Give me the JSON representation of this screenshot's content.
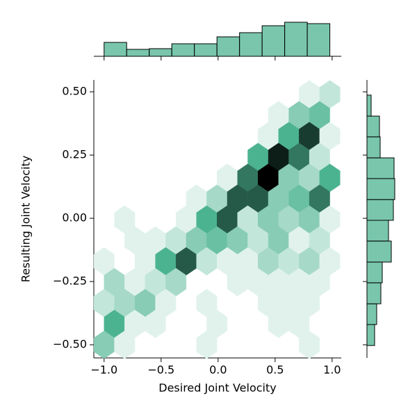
{
  "chart_data": {
    "type": "hexbin",
    "xlabel": "Desired Joint Velocity",
    "ylabel": "Resulting Joint Velocity",
    "color": "#4CB391",
    "xlim": [
      -1.09,
      1.08
    ],
    "ylim": [
      -0.552,
      0.547
    ],
    "xticks": [
      {
        "value": -1,
        "label": "−1.0"
      },
      {
        "value": -0.5,
        "label": "−0.5"
      },
      {
        "value": 0,
        "label": "0.0"
      },
      0.5,
      {
        "value": 1,
        "label": "1.0"
      }
    ],
    "yticks": [
      {
        "value": 0.5,
        "label": "0.50"
      },
      {
        "value": 0.25,
        "label": "0.25"
      },
      {
        "value": 0,
        "label": "0.00"
      },
      {
        "value": -0.25,
        "label": "−0.25"
      },
      {
        "value": -0.5,
        "label": "−0.50"
      }
    ],
    "x": [
      0.8,
      0.98,
      0.53,
      0.71,
      0.89,
      0.44,
      0.62,
      0.8,
      0.98,
      0.35,
      0.53,
      0.71,
      0.89,
      0.08,
      0.26,
      0.44,
      0.62,
      0.8,
      0.98,
      -0.19,
      -0.01,
      0.17,
      0.35,
      0.53,
      0.71,
      0.89,
      -0.82,
      -0.28,
      -0.1,
      0.08,
      0.26,
      0.44,
      0.62,
      0.8,
      0.98,
      -0.73,
      -0.55,
      -0.37,
      -0.19,
      -0.01,
      0.17,
      0.35,
      0.53,
      0.71,
      0.89,
      -1.0,
      -0.64,
      -0.46,
      -0.28,
      -0.1,
      0.08,
      0.26,
      0.44,
      0.62,
      0.8,
      0.98,
      -0.91,
      -0.73,
      -0.55,
      -0.37,
      0.17,
      0.35,
      0.53,
      0.71,
      0.89,
      -1.0,
      -0.82,
      -0.64,
      -0.46,
      -0.1,
      0.44,
      0.62,
      0.8,
      -0.91,
      -0.73,
      -0.55,
      -0.01,
      0.53,
      0.71,
      -1.0,
      -0.82,
      -0.1,
      0.8
    ],
    "y": [
      0.49,
      0.49,
      0.4075,
      0.4075,
      0.4075,
      0.325,
      0.325,
      0.325,
      0.325,
      0.2425,
      0.2425,
      0.2425,
      0.2425,
      0.16,
      0.16,
      0.16,
      0.16,
      0.16,
      0.16,
      0.0775,
      0.0775,
      0.0775,
      0.0775,
      0.0775,
      0.0775,
      0.0775,
      -0.005,
      -0.005,
      -0.005,
      -0.005,
      -0.005,
      -0.005,
      -0.005,
      -0.005,
      -0.005,
      -0.0875,
      -0.0875,
      -0.0875,
      -0.0875,
      -0.0875,
      -0.0875,
      -0.0875,
      -0.0875,
      -0.0875,
      -0.0875,
      -0.17,
      -0.17,
      -0.17,
      -0.17,
      -0.17,
      -0.17,
      -0.17,
      -0.17,
      -0.17,
      -0.17,
      -0.17,
      -0.2525,
      -0.2525,
      -0.2525,
      -0.2525,
      -0.2525,
      -0.2525,
      -0.2525,
      -0.2525,
      -0.2525,
      -0.335,
      -0.335,
      -0.335,
      -0.335,
      -0.335,
      -0.335,
      -0.335,
      -0.335,
      -0.4175,
      -0.4175,
      -0.4175,
      -0.4175,
      -0.4175,
      -0.4175,
      -0.5,
      -0.5,
      -0.5,
      -0.5
    ],
    "values": [
      1,
      2,
      1,
      4,
      5,
      1,
      6,
      10,
      1,
      6,
      11,
      8,
      2,
      1,
      8,
      12,
      4,
      3,
      6,
      1,
      3,
      9,
      9,
      4,
      5,
      8,
      1,
      1,
      6,
      9,
      2,
      4,
      3,
      4,
      1,
      1,
      1,
      2,
      4,
      5,
      4,
      2,
      4,
      1,
      2,
      1,
      1,
      6,
      9,
      2,
      1,
      1,
      3,
      2,
      3,
      1,
      3,
      1,
      2,
      3,
      1,
      1,
      1,
      1,
      1,
      2,
      3,
      4,
      1,
      1,
      1,
      1,
      1,
      6,
      1,
      1,
      1,
      1,
      1,
      4,
      1,
      1,
      1
    ],
    "marginal_x": {
      "type": "histogram",
      "bins": [
        -1.0,
        -0.802,
        -0.604,
        -0.406,
        -0.208,
        -0.01,
        0.188,
        0.386,
        0.584,
        0.782,
        0.98
      ],
      "values": [
        20,
        10,
        11,
        18,
        18,
        28,
        34,
        44,
        49,
        47
      ],
      "ylim": [
        0,
        60
      ]
    },
    "marginal_y": {
      "type": "histogram",
      "bins": [
        -0.503,
        -0.42,
        -0.338,
        -0.255,
        -0.173,
        -0.09,
        -0.008,
        0.074,
        0.157,
        0.239,
        0.322,
        0.404,
        0.487
      ],
      "values": [
        11,
        14,
        20,
        22,
        35,
        31,
        38,
        40,
        39,
        19,
        18,
        6
      ],
      "xlim": [
        0,
        60
      ]
    }
  }
}
